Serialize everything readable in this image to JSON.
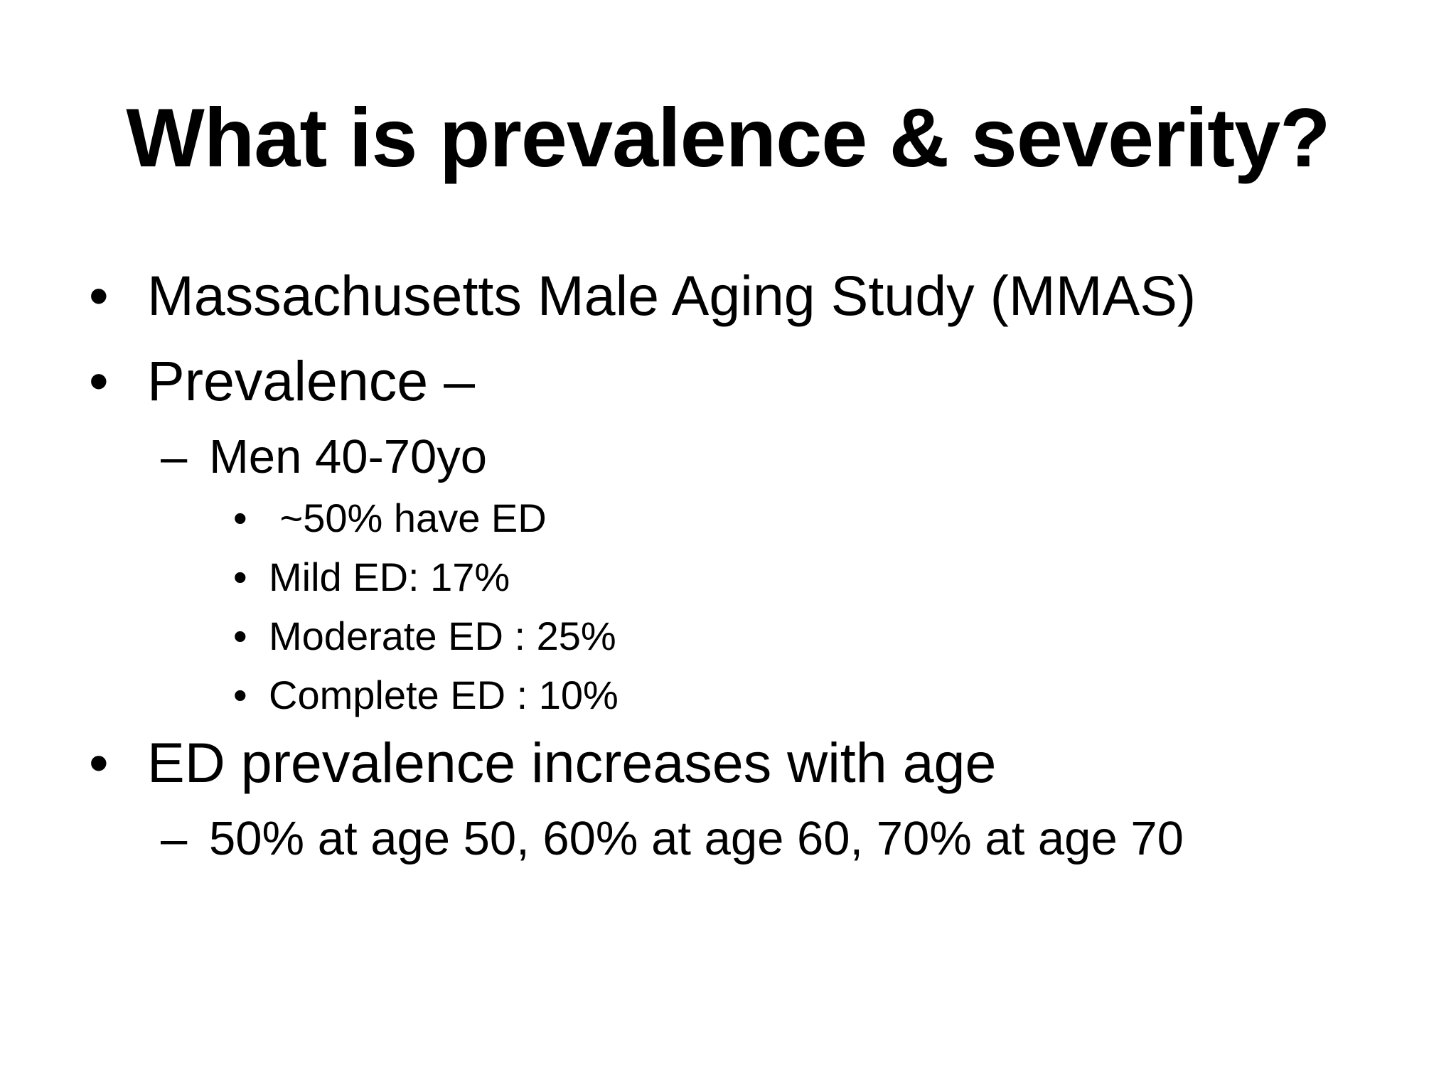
{
  "slide": {
    "title": "What is prevalence & severity?",
    "background_color": "#ffffff",
    "text_color": "#000000",
    "bullets": [
      {
        "level": 1,
        "marker": "•",
        "text": "Massachusetts Male Aging Study (MMAS)"
      },
      {
        "level": 1,
        "marker": "•",
        "text": "Prevalence –"
      },
      {
        "level": 2,
        "marker": "–",
        "text": "Men 40-70yo"
      },
      {
        "level": 3,
        "marker": "•",
        "text": " ~50% have ED"
      },
      {
        "level": 3,
        "marker": "•",
        "text": "Mild ED: 17%"
      },
      {
        "level": 3,
        "marker": "•",
        "text": "Moderate ED : 25%"
      },
      {
        "level": 3,
        "marker": "•",
        "text": "Complete ED : 10%"
      },
      {
        "level": 1,
        "marker": "•",
        "text": "ED prevalence increases with age"
      },
      {
        "level": 2,
        "marker": "–",
        "text": "50% at age 50, 60% at age 60, 70% at age 70"
      }
    ]
  }
}
